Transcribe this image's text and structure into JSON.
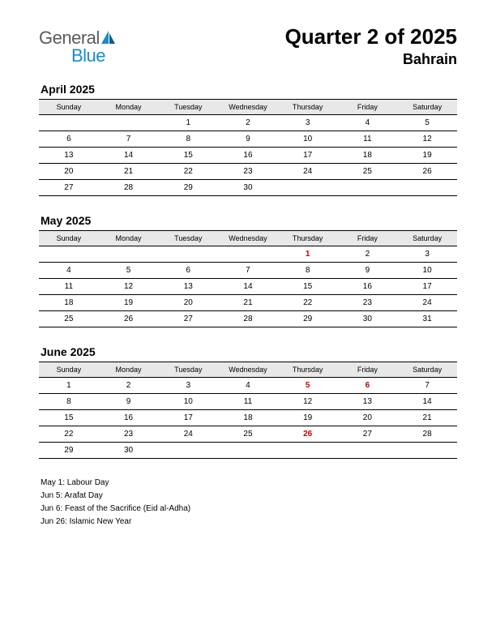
{
  "logo": {
    "top": "General",
    "bottom": "Blue",
    "text_color": "#5a5a5a",
    "accent_color": "#1a8cc9"
  },
  "header": {
    "title": "Quarter 2 of 2025",
    "subtitle": "Bahrain"
  },
  "weekdays": [
    "Sunday",
    "Monday",
    "Tuesday",
    "Wednesday",
    "Thursday",
    "Friday",
    "Saturday"
  ],
  "style": {
    "background": "#ffffff",
    "header_bg": "#e8e8e8",
    "border_color": "#000000",
    "holiday_color": "#cc0000",
    "text_color": "#000000",
    "title_fontsize": 26,
    "subtitle_fontsize": 18,
    "month_title_fontsize": 14,
    "weekday_fontsize": 9,
    "cell_fontsize": 10,
    "holiday_list_fontsize": 10
  },
  "months": [
    {
      "title": "April 2025",
      "weeks": [
        [
          {
            "d": ""
          },
          {
            "d": ""
          },
          {
            "d": "1"
          },
          {
            "d": "2"
          },
          {
            "d": "3"
          },
          {
            "d": "4"
          },
          {
            "d": "5"
          }
        ],
        [
          {
            "d": "6"
          },
          {
            "d": "7"
          },
          {
            "d": "8"
          },
          {
            "d": "9"
          },
          {
            "d": "10"
          },
          {
            "d": "11"
          },
          {
            "d": "12"
          }
        ],
        [
          {
            "d": "13"
          },
          {
            "d": "14"
          },
          {
            "d": "15"
          },
          {
            "d": "16"
          },
          {
            "d": "17"
          },
          {
            "d": "18"
          },
          {
            "d": "19"
          }
        ],
        [
          {
            "d": "20"
          },
          {
            "d": "21"
          },
          {
            "d": "22"
          },
          {
            "d": "23"
          },
          {
            "d": "24"
          },
          {
            "d": "25"
          },
          {
            "d": "26"
          }
        ],
        [
          {
            "d": "27"
          },
          {
            "d": "28"
          },
          {
            "d": "29"
          },
          {
            "d": "30"
          },
          {
            "d": ""
          },
          {
            "d": ""
          },
          {
            "d": ""
          }
        ]
      ]
    },
    {
      "title": "May 2025",
      "weeks": [
        [
          {
            "d": ""
          },
          {
            "d": ""
          },
          {
            "d": ""
          },
          {
            "d": ""
          },
          {
            "d": "1",
            "h": true
          },
          {
            "d": "2"
          },
          {
            "d": "3"
          }
        ],
        [
          {
            "d": "4"
          },
          {
            "d": "5"
          },
          {
            "d": "6"
          },
          {
            "d": "7"
          },
          {
            "d": "8"
          },
          {
            "d": "9"
          },
          {
            "d": "10"
          }
        ],
        [
          {
            "d": "11"
          },
          {
            "d": "12"
          },
          {
            "d": "13"
          },
          {
            "d": "14"
          },
          {
            "d": "15"
          },
          {
            "d": "16"
          },
          {
            "d": "17"
          }
        ],
        [
          {
            "d": "18"
          },
          {
            "d": "19"
          },
          {
            "d": "20"
          },
          {
            "d": "21"
          },
          {
            "d": "22"
          },
          {
            "d": "23"
          },
          {
            "d": "24"
          }
        ],
        [
          {
            "d": "25"
          },
          {
            "d": "26"
          },
          {
            "d": "27"
          },
          {
            "d": "28"
          },
          {
            "d": "29"
          },
          {
            "d": "30"
          },
          {
            "d": "31"
          }
        ]
      ]
    },
    {
      "title": "June 2025",
      "weeks": [
        [
          {
            "d": "1"
          },
          {
            "d": "2"
          },
          {
            "d": "3"
          },
          {
            "d": "4"
          },
          {
            "d": "5",
            "h": true
          },
          {
            "d": "6",
            "h": true
          },
          {
            "d": "7"
          }
        ],
        [
          {
            "d": "8"
          },
          {
            "d": "9"
          },
          {
            "d": "10"
          },
          {
            "d": "11"
          },
          {
            "d": "12"
          },
          {
            "d": "13"
          },
          {
            "d": "14"
          }
        ],
        [
          {
            "d": "15"
          },
          {
            "d": "16"
          },
          {
            "d": "17"
          },
          {
            "d": "18"
          },
          {
            "d": "19"
          },
          {
            "d": "20"
          },
          {
            "d": "21"
          }
        ],
        [
          {
            "d": "22"
          },
          {
            "d": "23"
          },
          {
            "d": "24"
          },
          {
            "d": "25"
          },
          {
            "d": "26",
            "h": true
          },
          {
            "d": "27"
          },
          {
            "d": "28"
          }
        ],
        [
          {
            "d": "29"
          },
          {
            "d": "30"
          },
          {
            "d": ""
          },
          {
            "d": ""
          },
          {
            "d": ""
          },
          {
            "d": ""
          },
          {
            "d": ""
          }
        ]
      ]
    }
  ],
  "holiday_list": [
    "May 1: Labour Day",
    "Jun 5: Arafat Day",
    "Jun 6: Feast of the Sacrifice (Eid al-Adha)",
    "Jun 26: Islamic New Year"
  ]
}
